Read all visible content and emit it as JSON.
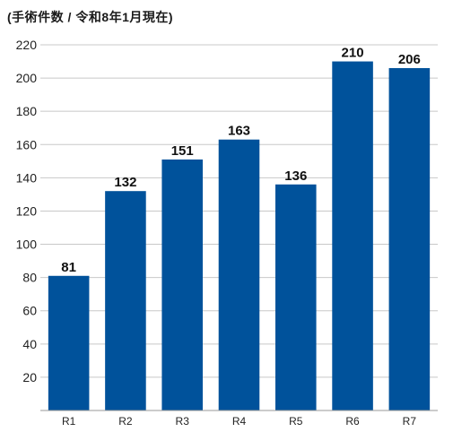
{
  "chart_data": {
    "type": "bar",
    "title": "(手術件数 / 令和8年1月現在)",
    "categories": [
      "R1",
      "R2",
      "R3",
      "R4",
      "R5",
      "R6",
      "R7"
    ],
    "values": [
      81,
      132,
      151,
      163,
      136,
      210,
      206
    ],
    "data_labels": [
      "81",
      "132",
      "151",
      "163",
      "136",
      "210",
      "206"
    ],
    "xlabel": "",
    "ylabel": "",
    "ylim": [
      0,
      220
    ],
    "yticks": [
      20,
      40,
      60,
      80,
      100,
      120,
      140,
      160,
      180,
      200,
      220
    ],
    "bar_color": "#00529b",
    "grid": true,
    "grid_color": "#c8c8c8",
    "legend": "none"
  }
}
